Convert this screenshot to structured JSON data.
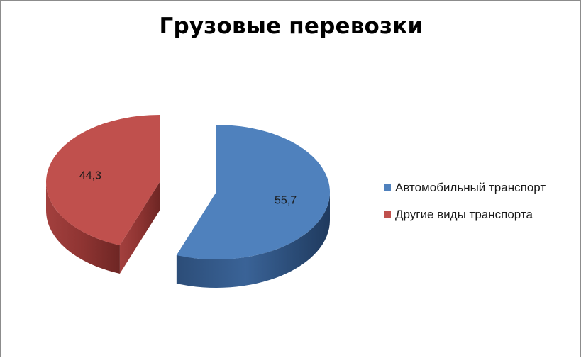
{
  "chart_data": {
    "type": "pie",
    "title": "Грузовые перевозки",
    "labels": [
      "Автомобильный транспорт",
      "Другие виды транспорта"
    ],
    "values": [
      55.7,
      44.3
    ],
    "value_labels": [
      "55,7",
      "44,3"
    ],
    "colors": [
      "#4F81BD",
      "#C0504D"
    ],
    "legend_position": "right",
    "style": "3d-exploded"
  }
}
